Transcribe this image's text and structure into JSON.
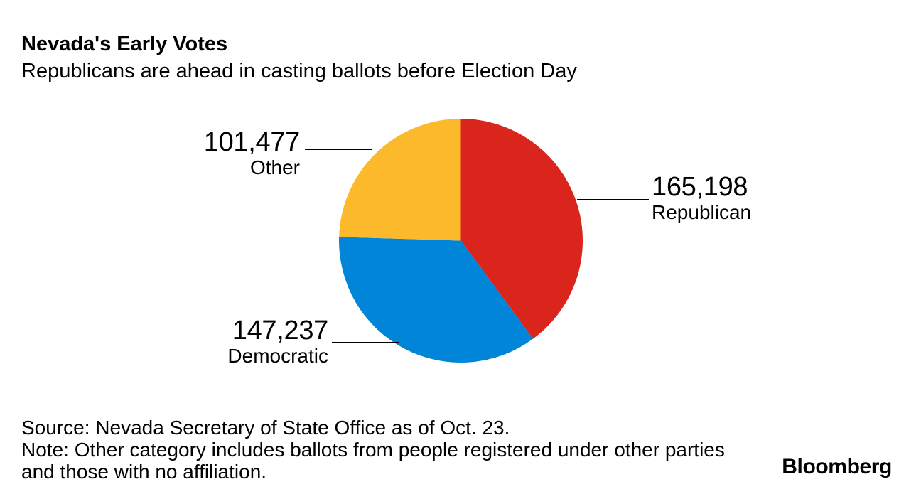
{
  "header": {
    "title": "Nevada's Early Votes",
    "subtitle": "Republicans are ahead in casting ballots before Election Day"
  },
  "chart_data": {
    "type": "pie",
    "title": "Nevada's Early Votes",
    "subtitle": "Republicans are ahead in casting ballots before Election Day",
    "start_angle_deg": 0,
    "direction": "clockwise",
    "legend_position": "callout-labels",
    "series": [
      {
        "name": "Republican",
        "value": 165198,
        "value_label": "165,198",
        "color": "#da251d"
      },
      {
        "name": "Democratic",
        "value": 147237,
        "value_label": "147,237",
        "color": "#0085d8"
      },
      {
        "name": "Other",
        "value": 101477,
        "value_label": "101,477",
        "color": "#fdb92c"
      }
    ]
  },
  "footer": {
    "source": "Source: Nevada Secretary of State Office as of Oct. 23.",
    "note_line1": "Note: Other category includes ballots from people registered under other parties",
    "note_line2": "and those with no affiliation.",
    "brand": "Bloomberg"
  }
}
